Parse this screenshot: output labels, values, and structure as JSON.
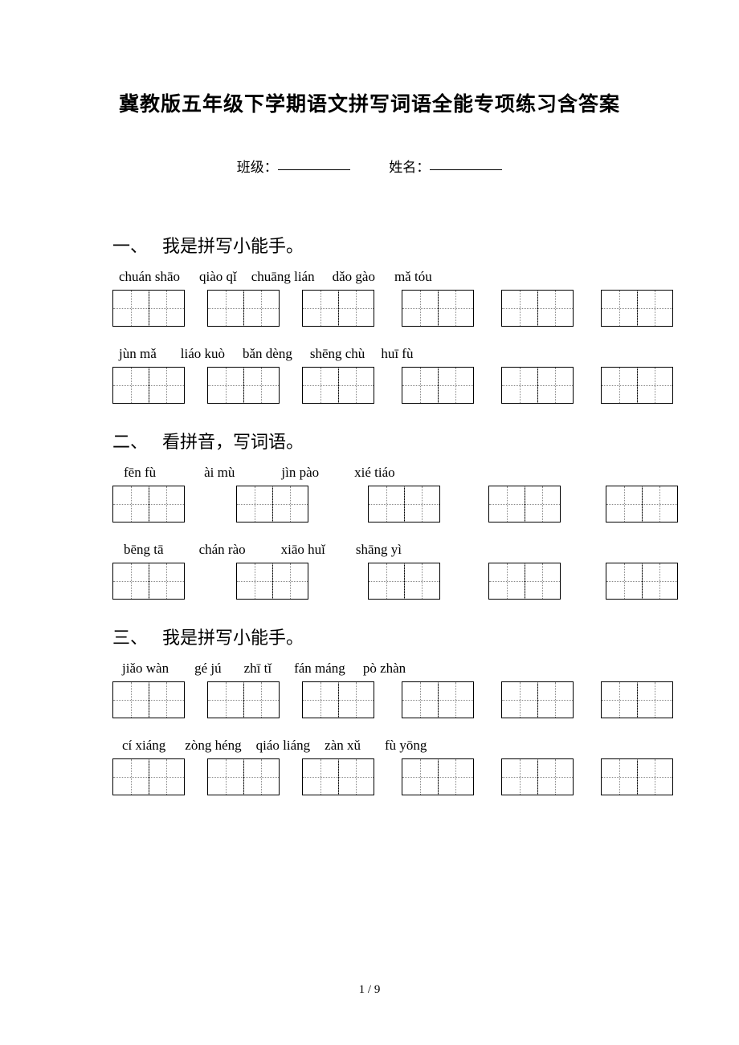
{
  "title": "冀教版五年级下学期语文拼写词语全能专项练习含答案",
  "id_labels": {
    "class": "班级：",
    "name": "姓名："
  },
  "sections": [
    {
      "num": "一、",
      "heading": "我是拼写小能手。",
      "rows": [
        {
          "pinyins": [
            "chuán shāo",
            "qiào qǐ",
            "chuāng lián",
            "dǎo gào",
            "mǎ tóu"
          ],
          "pinyin_gaps": [
            0,
            24,
            18,
            22,
            24,
            26
          ],
          "box_gaps": [
            0,
            28,
            28,
            34,
            34,
            34
          ]
        },
        {
          "pinyins": [
            "jùn mǎ",
            "liáo kuò",
            "bǎn dèng",
            "shēng chù",
            "huī fù"
          ],
          "pinyin_gaps": [
            0,
            30,
            22,
            22,
            20,
            0
          ],
          "box_gaps": [
            0,
            28,
            28,
            34,
            34,
            34
          ]
        }
      ]
    },
    {
      "num": "二、",
      "heading": "看拼音，写词语。",
      "rows": [
        {
          "pinyins": [
            "fēn fù",
            "ài mù",
            "jìn pào",
            "xié tiáo"
          ],
          "pinyin_gaps": [
            6,
            60,
            58,
            44,
            0
          ],
          "box_gaps": [
            0,
            64,
            74,
            60,
            56
          ]
        },
        {
          "pinyins": [
            "bēng tā",
            "chán rào",
            "xiāo huǐ",
            "shāng yì"
          ],
          "pinyin_gaps": [
            6,
            44,
            44,
            38,
            0
          ],
          "box_gaps": [
            0,
            64,
            74,
            60,
            56
          ]
        }
      ]
    },
    {
      "num": "三、",
      "heading": "我是拼写小能手。",
      "rows": [
        {
          "pinyins": [
            "jiǎo wàn",
            "gé jú",
            "zhī tǐ",
            "fán máng",
            "pò zhàn"
          ],
          "pinyin_gaps": [
            4,
            32,
            28,
            28,
            22,
            0
          ],
          "box_gaps": [
            0,
            28,
            28,
            34,
            34,
            34
          ]
        },
        {
          "pinyins": [
            "cí xiáng",
            "zòng héng",
            "qiáo liáng",
            "zàn xǔ",
            "fù yōng"
          ],
          "pinyin_gaps": [
            4,
            24,
            18,
            18,
            30,
            0
          ],
          "box_gaps": [
            0,
            28,
            28,
            34,
            34,
            34
          ]
        }
      ]
    }
  ],
  "footer": "1 / 9",
  "colors": {
    "text": "#000000",
    "bg": "#ffffff",
    "dotted": "#888888"
  }
}
